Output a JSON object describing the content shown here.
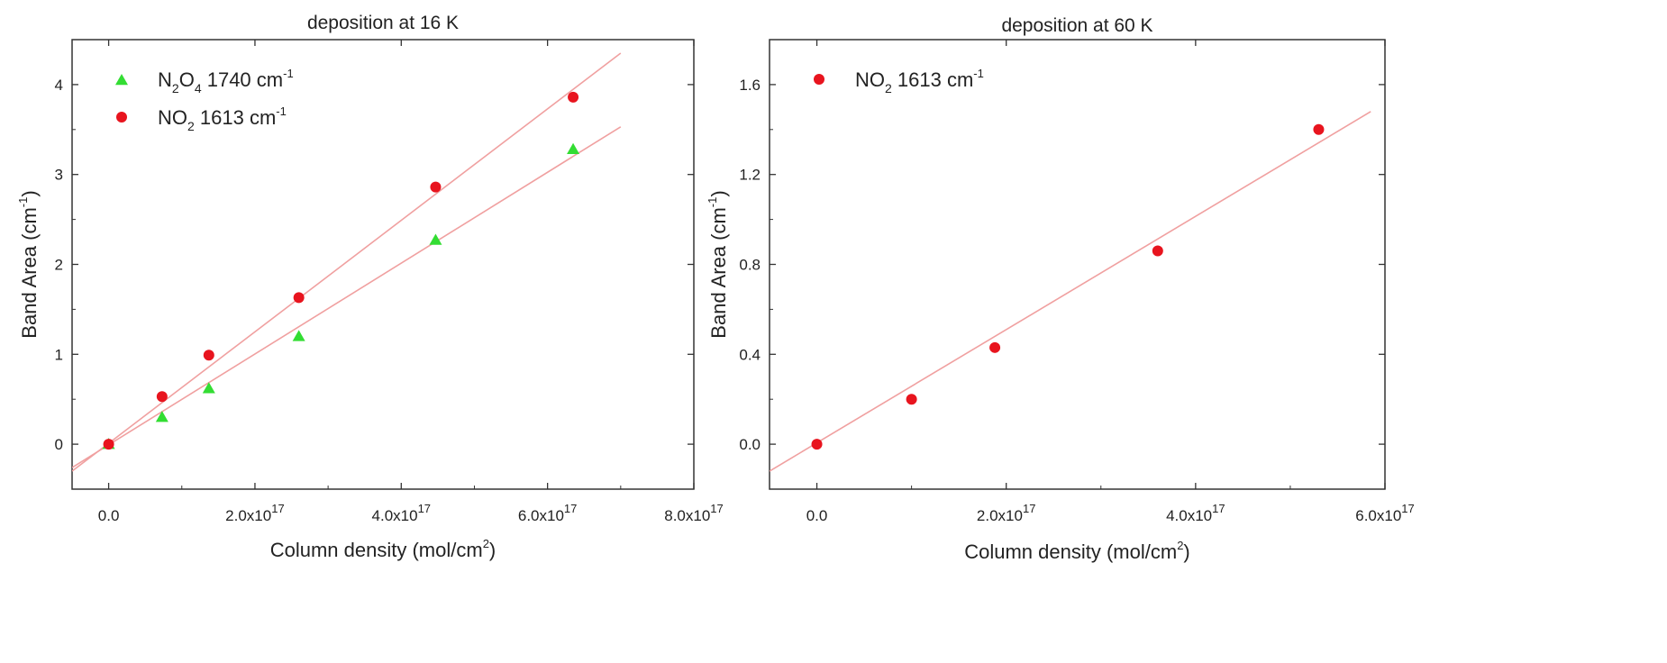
{
  "chart_data": [
    {
      "type": "scatter",
      "title": "deposition at 16 K",
      "xlabel": {
        "main": "Column density (mol/cm",
        "sup": "2",
        "tail": ")"
      },
      "ylabel": {
        "main": "Band Area (cm",
        "sup": "-1",
        "tail": ")"
      },
      "xlim": [
        -5e+16,
        8e+17
      ],
      "ylim": [
        -0.5,
        4.5
      ],
      "xticks": [
        {
          "value": 0,
          "mant": "0.0",
          "exp": ""
        },
        {
          "value": 2e+17,
          "mant": "2.0x10",
          "exp": "17"
        },
        {
          "value": 4e+17,
          "mant": "4.0x10",
          "exp": "17"
        },
        {
          "value": 6e+17,
          "mant": "6.0x10",
          "exp": "17"
        },
        {
          "value": 8e+17,
          "mant": "8.0x10",
          "exp": "17"
        }
      ],
      "yticks": [
        {
          "value": 0,
          "label": "0"
        },
        {
          "value": 1,
          "label": "1"
        },
        {
          "value": 2,
          "label": "2"
        },
        {
          "value": 3,
          "label": "3"
        },
        {
          "value": 4,
          "label": "4"
        }
      ],
      "legend_position": "top-left",
      "series": [
        {
          "legend": {
            "a": "N",
            "a_sub": "2",
            "b": "O",
            "b_sub": "4",
            "rest": " 1740 cm",
            "sup": "-1"
          },
          "marker": "triangle",
          "color": "#33dd33",
          "x": [
            0,
            7.3e+16,
            1.37e+17,
            2.6e+17,
            4.47e+17,
            6.35e+17
          ],
          "y": [
            0.0,
            0.3,
            0.62,
            1.2,
            2.27,
            3.28
          ],
          "fit": {
            "color": "#f0a0a0",
            "x": [
              -5e+16,
              7e+17
            ],
            "y": [
              -0.26,
              3.53
            ]
          }
        },
        {
          "legend": {
            "a": "NO",
            "a_sub": "2",
            "b": "",
            "b_sub": "",
            "rest": "  1613 cm",
            "sup": "-1"
          },
          "marker": "circle",
          "color": "#e8141e",
          "x": [
            0,
            7.3e+16,
            1.37e+17,
            2.6e+17,
            4.47e+17,
            6.35e+17
          ],
          "y": [
            0.0,
            0.53,
            0.99,
            1.63,
            2.86,
            3.86
          ],
          "fit": {
            "color": "#f0a0a0",
            "x": [
              -5e+16,
              7e+17
            ],
            "y": [
              -0.3,
              4.35
            ]
          }
        }
      ]
    },
    {
      "type": "scatter",
      "title": "deposition at 60 K",
      "xlabel": {
        "main": "Column density (mol/cm",
        "sup": "2",
        "tail": ")"
      },
      "ylabel": {
        "main": "Band Area (cm",
        "sup": "-1",
        "tail": ")"
      },
      "xlim": [
        -5e+16,
        6e+17
      ],
      "ylim": [
        -0.2,
        1.8
      ],
      "xticks": [
        {
          "value": 0,
          "mant": "0.0",
          "exp": ""
        },
        {
          "value": 2e+17,
          "mant": "2.0x10",
          "exp": "17"
        },
        {
          "value": 4e+17,
          "mant": "4.0x10",
          "exp": "17"
        },
        {
          "value": 6e+17,
          "mant": "6.0x10",
          "exp": "17"
        }
      ],
      "yticks": [
        {
          "value": 0,
          "label": "0.0"
        },
        {
          "value": 0.4,
          "label": "0.4"
        },
        {
          "value": 0.8,
          "label": "0.8"
        },
        {
          "value": 1.2,
          "label": "1.2"
        },
        {
          "value": 1.6,
          "label": "1.6"
        }
      ],
      "legend_position": "top-left",
      "series": [
        {
          "legend": {
            "a": "NO",
            "a_sub": "2",
            "b": "",
            "b_sub": "",
            "rest": "  1613 cm",
            "sup": "-1"
          },
          "marker": "circle",
          "color": "#e8141e",
          "x": [
            0,
            1e+17,
            1.88e+17,
            3.6e+17,
            5.3e+17
          ],
          "y": [
            0.0,
            0.2,
            0.43,
            0.86,
            1.4
          ],
          "fit": {
            "color": "#f0a0a0",
            "x": [
              -5e+16,
              5.85e+17
            ],
            "y": [
              -0.12,
              1.48
            ]
          }
        }
      ]
    }
  ]
}
